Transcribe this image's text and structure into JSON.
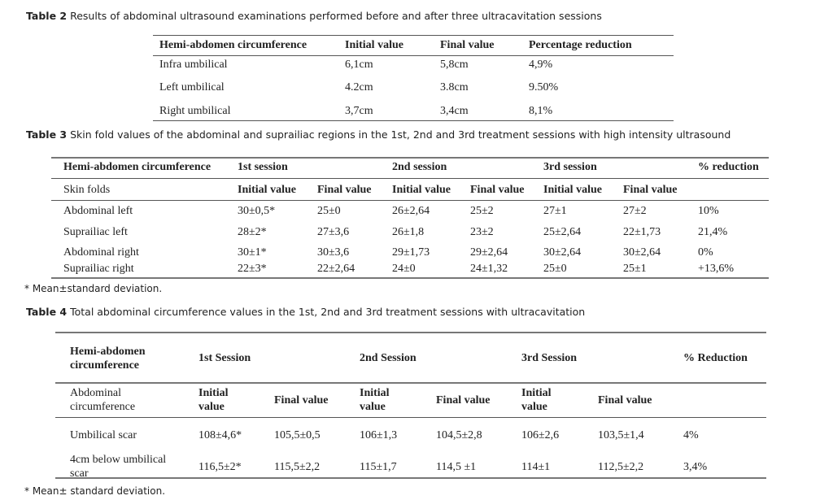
{
  "table2": {
    "label": "Table 2",
    "caption": "Results of abdominal ultrasound examinations performed before and after three ultracavitation sessions",
    "headers": [
      "Hemi-abdomen circumference",
      "Initial value",
      "Final value",
      "Percentage reduction"
    ],
    "rows": [
      [
        "Infra umbilical",
        "6,1cm",
        "5,8cm",
        "4,9%"
      ],
      [
        "Left umbilical",
        "4.2cm",
        "3.8cm",
        "9.50%"
      ],
      [
        "Right umbilical",
        "3,7cm",
        "3,4cm",
        "8,1%"
      ]
    ]
  },
  "table3": {
    "label": "Table 3",
    "caption": "Skin fold values of the abdominal and suprailiac regions in the 1st, 2nd and 3rd treatment sessions with high intensity ultrasound",
    "headers": [
      "Hemi-abdomen circumference",
      "1st session",
      "2nd session",
      "3rd session",
      "% reduction"
    ],
    "subheaders": [
      "Skin folds",
      "Initial value",
      "Final value",
      "Initial value",
      "Final value",
      "Initial value",
      "Final value"
    ],
    "rows": [
      [
        "Abdominal left",
        "30±0,5*",
        "25±0",
        "26±2,64",
        "25±2",
        "27±1",
        "27±2",
        "10%"
      ],
      [
        "Suprailiac left",
        "28±2*",
        "27±3,6",
        "26±1,8",
        "23±2",
        "25±2,64",
        "22±1,73",
        "21,4%"
      ],
      [
        "Abdominal right",
        "30±1*",
        "30±3,6",
        "29±1,73",
        "29±2,64",
        "30±2,64",
        "30±2,64",
        "0%"
      ],
      [
        "Suprailiac right",
        "22±3*",
        "22±2,64",
        "24±0",
        "24±1,32",
        "25±0",
        "25±1",
        "+13,6%"
      ]
    ],
    "footnote": "* Mean±standard deviation."
  },
  "table4": {
    "label": "Table 4",
    "caption": "Total abdominal circumference values in the 1st, 2nd and 3rd treatment sessions with ultracavitation",
    "headers": [
      "Hemi-abdomen circumference",
      "1st Session",
      "2nd Session",
      "3rd Session",
      "% Reduction"
    ],
    "subheaders": [
      "Abdominal circumference",
      "Initial value",
      "Final value",
      "Initial value",
      "Final value",
      "Initial value",
      "Final value"
    ],
    "rows": [
      [
        "Umbilical scar",
        "108±4,6*",
        "105,5±0,5",
        "106±1,3",
        "104,5±2,8",
        "106±2,6",
        "103,5±1,4",
        "4%"
      ],
      [
        "4cm below umbilical scar",
        "116,5±2*",
        "115,5±2,2",
        "115±1,7",
        "114,5 ±1",
        "114±1",
        "112,5±2,2",
        "3,4%"
      ]
    ],
    "footnote": "* Mean± standard deviation."
  }
}
